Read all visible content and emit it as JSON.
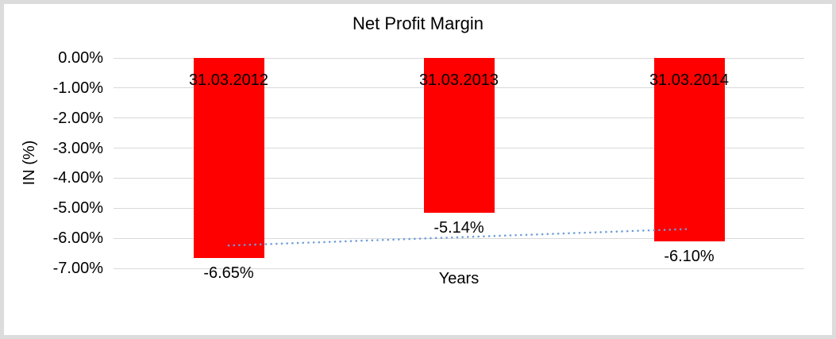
{
  "frame": {
    "background": "#ffffff",
    "border_color": "#dcdcdc"
  },
  "chart_data": {
    "type": "bar",
    "title": "Net Profit Margin",
    "categories": [
      "31.03.2012",
      "31.03.2013",
      "31.03.2014"
    ],
    "values": [
      -6.65,
      -5.14,
      -6.1
    ],
    "value_labels": [
      "-6.65%",
      "-5.14%",
      "-6.10%"
    ],
    "xlabel": "Years",
    "ylabel": "IN (%)",
    "ylim": [
      -7,
      0
    ],
    "y_ticks": [
      "0.00%",
      "-1.00%",
      "-2.00%",
      "-3.00%",
      "-4.00%",
      "-5.00%",
      "-6.00%",
      "-7.00%"
    ],
    "y_tick_values": [
      0,
      -1,
      -2,
      -3,
      -4,
      -5,
      -6,
      -7
    ],
    "grid": true,
    "legend": "none",
    "bar_color": "#ff0000",
    "gridline_color": "#d9d9d9",
    "text_color": "#000000",
    "trendline": {
      "type": "linear",
      "style": "dotted",
      "color": "#6d9eda",
      "start_value": -6.24,
      "end_value": -5.69
    }
  }
}
